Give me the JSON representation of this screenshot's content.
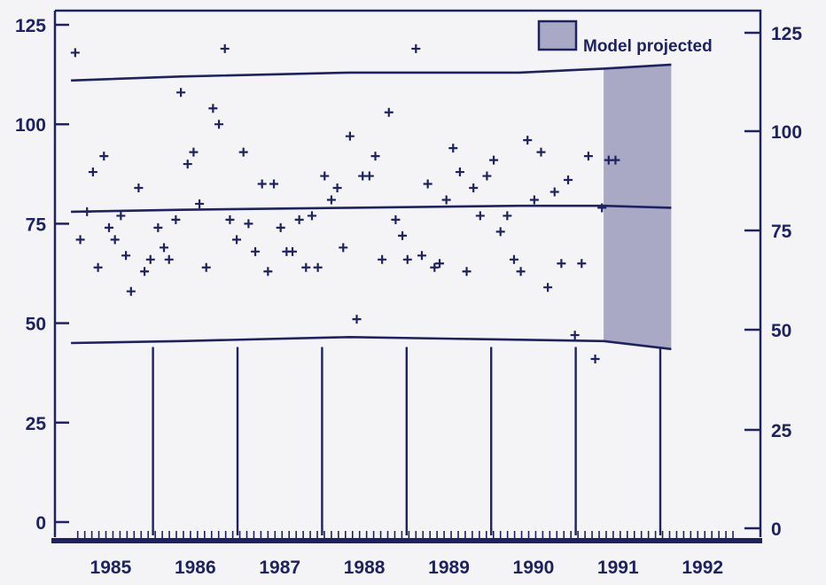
{
  "chart_data": {
    "type": "scatter",
    "title": "",
    "xlabel": "",
    "ylabel": "",
    "xlim": [
      1984.5,
      1992.7
    ],
    "ylim_left": [
      -5,
      130
    ],
    "ylim_right": [
      -5,
      130
    ],
    "left_ticks": [
      "125",
      "100",
      "75",
      "50",
      "25",
      "0"
    ],
    "right_ticks": [
      "125",
      "100",
      "75",
      "50",
      "25",
      "0"
    ],
    "x_tick_labels": [
      "1985",
      "1986",
      "1987",
      "1988",
      "1989",
      "1990",
      "1991",
      "1992"
    ],
    "legend": {
      "label": "Model projected",
      "position": "top-right"
    },
    "projected_region": {
      "x_start": 1991.0,
      "x_end": 1991.8
    },
    "colors": {
      "ink": "#1f2260",
      "shade": "#a9a9c6",
      "background": "#f4f4f6"
    },
    "bands": [
      {
        "role": "upper",
        "points": [
          [
            1984.7,
            111
          ],
          [
            1986.0,
            112
          ],
          [
            1988.0,
            113
          ],
          [
            1990.0,
            113
          ],
          [
            1991.0,
            114
          ],
          [
            1991.8,
            115
          ]
        ]
      },
      {
        "role": "center",
        "points": [
          [
            1984.7,
            78
          ],
          [
            1986.0,
            78.5
          ],
          [
            1988.0,
            79
          ],
          [
            1990.0,
            79.5
          ],
          [
            1991.0,
            79.5
          ],
          [
            1991.8,
            79
          ]
        ]
      },
      {
        "role": "lower",
        "points": [
          [
            1984.7,
            45
          ],
          [
            1986.0,
            45.5
          ],
          [
            1988.0,
            46.5
          ],
          [
            1989.5,
            46
          ],
          [
            1991.0,
            45.5
          ],
          [
            1991.8,
            43.5
          ]
        ]
      }
    ],
    "year_dividers": [
      1985.67,
      1986.67,
      1987.67,
      1988.67,
      1989.67,
      1990.67,
      1991.67
    ],
    "divider_top": 44,
    "points": [
      [
        1984.75,
        118
      ],
      [
        1984.81,
        71
      ],
      [
        1984.89,
        78
      ],
      [
        1984.96,
        88
      ],
      [
        1985.02,
        64
      ],
      [
        1985.09,
        92
      ],
      [
        1985.15,
        74
      ],
      [
        1985.22,
        71
      ],
      [
        1985.29,
        77
      ],
      [
        1985.35,
        67
      ],
      [
        1985.41,
        58
      ],
      [
        1985.5,
        84
      ],
      [
        1985.57,
        63
      ],
      [
        1985.64,
        66
      ],
      [
        1985.73,
        74
      ],
      [
        1985.8,
        69
      ],
      [
        1985.86,
        66
      ],
      [
        1985.94,
        76
      ],
      [
        1986.0,
        108
      ],
      [
        1986.08,
        90
      ],
      [
        1986.15,
        93
      ],
      [
        1986.22,
        80
      ],
      [
        1986.3,
        64
      ],
      [
        1986.38,
        104
      ],
      [
        1986.45,
        100
      ],
      [
        1986.52,
        119
      ],
      [
        1986.58,
        76
      ],
      [
        1986.66,
        71
      ],
      [
        1986.74,
        93
      ],
      [
        1986.8,
        75
      ],
      [
        1986.88,
        68
      ],
      [
        1986.96,
        85
      ],
      [
        1987.03,
        63
      ],
      [
        1987.1,
        85
      ],
      [
        1987.18,
        74
      ],
      [
        1987.25,
        68
      ],
      [
        1987.32,
        68
      ],
      [
        1987.4,
        76
      ],
      [
        1987.48,
        64
      ],
      [
        1987.55,
        77
      ],
      [
        1987.62,
        64
      ],
      [
        1987.7,
        87
      ],
      [
        1987.78,
        81
      ],
      [
        1987.85,
        84
      ],
      [
        1987.92,
        69
      ],
      [
        1988.0,
        97
      ],
      [
        1988.08,
        51
      ],
      [
        1988.15,
        87
      ],
      [
        1988.23,
        87
      ],
      [
        1988.3,
        92
      ],
      [
        1988.38,
        66
      ],
      [
        1988.46,
        103
      ],
      [
        1988.54,
        76
      ],
      [
        1988.62,
        72
      ],
      [
        1988.68,
        66
      ],
      [
        1988.78,
        119
      ],
      [
        1988.85,
        67
      ],
      [
        1988.92,
        85
      ],
      [
        1989.0,
        64
      ],
      [
        1989.06,
        65
      ],
      [
        1989.14,
        81
      ],
      [
        1989.22,
        94
      ],
      [
        1989.3,
        88
      ],
      [
        1989.38,
        63
      ],
      [
        1989.46,
        84
      ],
      [
        1989.54,
        77
      ],
      [
        1989.62,
        87
      ],
      [
        1989.7,
        91
      ],
      [
        1989.78,
        73
      ],
      [
        1989.86,
        77
      ],
      [
        1989.94,
        66
      ],
      [
        1990.02,
        63
      ],
      [
        1990.1,
        96
      ],
      [
        1990.18,
        81
      ],
      [
        1990.26,
        93
      ],
      [
        1990.34,
        59
      ],
      [
        1990.42,
        83
      ],
      [
        1990.5,
        65
      ],
      [
        1990.58,
        86
      ],
      [
        1990.66,
        47
      ],
      [
        1990.74,
        65
      ],
      [
        1990.82,
        92
      ],
      [
        1990.9,
        41
      ],
      [
        1990.98,
        79
      ],
      [
        1991.06,
        91
      ],
      [
        1991.14,
        91
      ]
    ]
  }
}
